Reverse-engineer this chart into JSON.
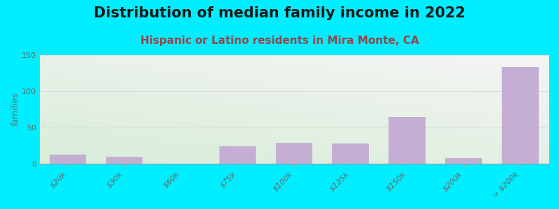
{
  "title": "Distribution of median family income in 2022",
  "subtitle": "Hispanic or Latino residents in Mira Monte, CA",
  "ylabel": "families",
  "categories": [
    "$20k",
    "$30k",
    "$60k",
    "$75k",
    "$100k",
    "$125k",
    "$150k",
    "$200k",
    "> $200k"
  ],
  "values": [
    13,
    10,
    0,
    24,
    29,
    28,
    64,
    8,
    134
  ],
  "bar_color": "#c4aed4",
  "background_color": "#00eeff",
  "plot_bg_color_topleft": "#f0f5ee",
  "plot_bg_color_topright": "#f5f5f5",
  "plot_bg_color_bottomleft": "#d8edd8",
  "plot_bg_color_bottomright": "#eef5ee",
  "title_fontsize": 15,
  "subtitle_fontsize": 11,
  "subtitle_color": "#994444",
  "ylabel_fontsize": 9,
  "tick_fontsize": 8,
  "ylim": [
    0,
    150
  ],
  "yticks": [
    0,
    50,
    100,
    150
  ]
}
